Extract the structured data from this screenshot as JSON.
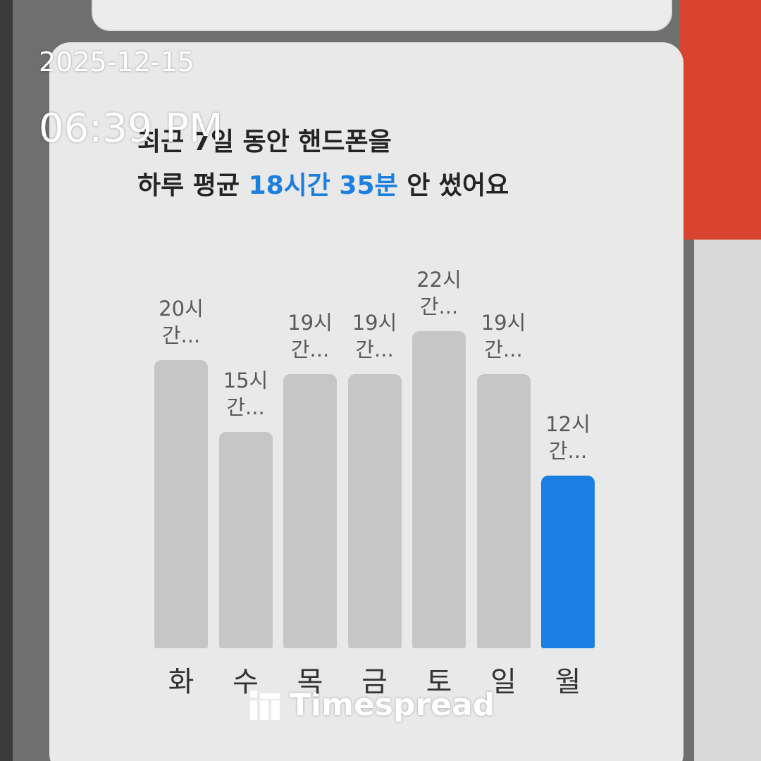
{
  "header": {
    "date": "2025-12-15",
    "time": "06:39 PM",
    "watermark": "Timespread"
  },
  "chart_data": {
    "type": "bar",
    "title": "최근 7일 동안 핸드폰을",
    "subtitle": {
      "before": "하루 평균",
      "highlight": "18시간 35분",
      "after": "안 썼어요"
    },
    "categories": [
      "화",
      "수",
      "목",
      "금",
      "토",
      "일",
      "월"
    ],
    "values": [
      20,
      15,
      19,
      19,
      22,
      19,
      12
    ],
    "value_labels": [
      "20시 간...",
      "15시 간...",
      "19시 간...",
      "19시 간...",
      "22시 간...",
      "19시 간...",
      "12시 간..."
    ],
    "colors": [
      "#c6c6c6",
      "#c6c6c6",
      "#c6c6c6",
      "#c6c6c6",
      "#c6c6c6",
      "#c6c6c6",
      "#1a7fe0"
    ],
    "highlight_color": "#1a7fe0",
    "ylim": [
      0,
      22
    ]
  }
}
